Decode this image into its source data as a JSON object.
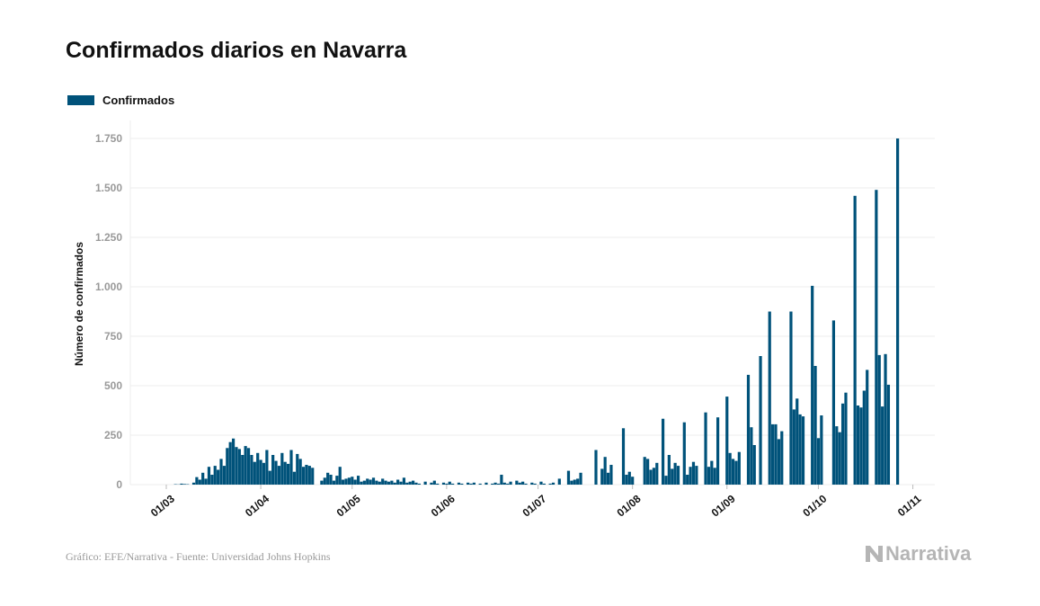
{
  "title": "Confirmados diarios en Navarra",
  "footer": "Gráfico: EFE/Narrativa - Fuente: Universidad Johns Hopkins",
  "logo_text": "Narrativa",
  "colors": {
    "bar": "#00527a",
    "grid": "#ececec",
    "tick": "#999999"
  },
  "chart_data": {
    "type": "bar",
    "title": "Confirmados diarios en Navarra",
    "xlabel": "",
    "ylabel": "Número de confirmados",
    "legend": [
      {
        "name": "Confirmados",
        "position": "top-left"
      }
    ],
    "start_date": "2020-03-01",
    "ylim": [
      0,
      1750
    ],
    "yticks": [
      0,
      250,
      500,
      750,
      1000,
      1250,
      1500,
      1750
    ],
    "ytick_labels": [
      "0",
      "250",
      "500",
      "750",
      "1.000",
      "1.250",
      "1.500",
      "1.750"
    ],
    "xticks": [
      {
        "day": 0,
        "label": "01/03"
      },
      {
        "day": 31,
        "label": "01/04"
      },
      {
        "day": 61,
        "label": "01/05"
      },
      {
        "day": 92,
        "label": "01/06"
      },
      {
        "day": 122,
        "label": "01/07"
      },
      {
        "day": 153,
        "label": "01/08"
      },
      {
        "day": 184,
        "label": "01/09"
      },
      {
        "day": 214,
        "label": "01/10"
      },
      {
        "day": 245,
        "label": "01/11"
      }
    ],
    "grid": true,
    "series": [
      {
        "name": "Confirmados",
        "values": [
          0,
          0,
          0,
          2,
          1,
          5,
          3,
          2,
          0,
          10,
          38,
          25,
          60,
          30,
          90,
          50,
          95,
          75,
          130,
          95,
          185,
          215,
          233,
          190,
          180,
          150,
          195,
          185,
          150,
          115,
          160,
          125,
          110,
          175,
          70,
          150,
          120,
          95,
          160,
          115,
          105,
          175,
          65,
          155,
          130,
          90,
          100,
          95,
          85,
          0,
          0,
          20,
          35,
          60,
          50,
          20,
          45,
          90,
          25,
          30,
          35,
          40,
          25,
          45,
          15,
          20,
          30,
          25,
          35,
          20,
          15,
          30,
          20,
          15,
          20,
          10,
          25,
          15,
          35,
          10,
          15,
          20,
          10,
          5,
          0,
          15,
          0,
          10,
          20,
          5,
          0,
          10,
          5,
          15,
          5,
          0,
          10,
          5,
          0,
          10,
          5,
          10,
          0,
          5,
          0,
          10,
          0,
          5,
          10,
          5,
          50,
          10,
          5,
          15,
          0,
          20,
          10,
          15,
          5,
          0,
          10,
          5,
          0,
          15,
          5,
          0,
          5,
          10,
          0,
          30,
          0,
          0,
          70,
          20,
          25,
          30,
          60,
          0,
          0,
          0,
          0,
          175,
          0,
          80,
          140,
          60,
          100,
          0,
          0,
          0,
          285,
          50,
          65,
          40,
          0,
          0,
          0,
          140,
          130,
          75,
          85,
          110,
          0,
          333,
          45,
          150,
          80,
          110,
          95,
          0,
          315,
          50,
          90,
          115,
          95,
          0,
          0,
          365,
          90,
          120,
          85,
          340,
          0,
          0,
          445,
          160,
          130,
          120,
          165,
          0,
          0,
          555,
          290,
          200,
          0,
          650,
          0,
          0,
          875,
          305,
          305,
          230,
          270,
          0,
          0,
          875,
          380,
          435,
          355,
          345,
          0,
          0,
          1005,
          600,
          235,
          350,
          0,
          0,
          0,
          830,
          295,
          265,
          410,
          465,
          0,
          0,
          1460,
          400,
          390,
          475,
          580,
          0,
          0,
          1490,
          655,
          395,
          660,
          505,
          0,
          0,
          1750
        ]
      }
    ]
  }
}
